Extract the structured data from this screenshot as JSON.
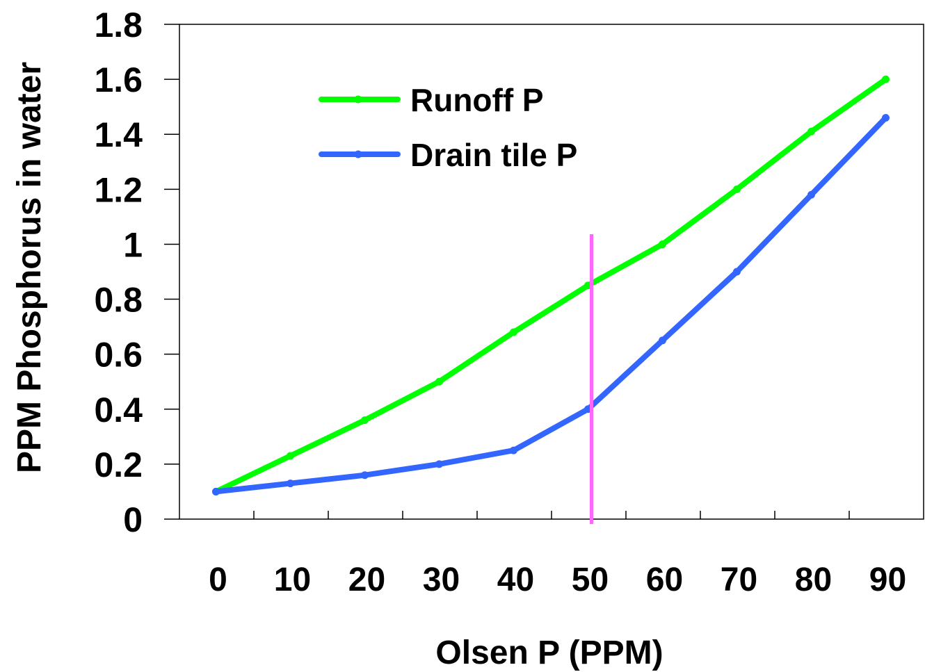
{
  "chart_data": {
    "type": "line",
    "title": "",
    "xlabel": "Olsen P (PPM)",
    "ylabel": "PPM Phosphorus  in water",
    "x": [
      0,
      10,
      20,
      30,
      40,
      50,
      60,
      70,
      80,
      90
    ],
    "x_tick_labels": [
      "0",
      "10",
      "20",
      "30",
      "40",
      "50",
      "60",
      "70",
      "80",
      "90"
    ],
    "y_tick_labels": [
      "0",
      "0.2",
      "0.4",
      "0.6",
      "0.8",
      "1",
      "1.2",
      "1.4",
      "1.6",
      "1.8"
    ],
    "ylim": [
      0,
      1.8
    ],
    "grid": false,
    "legend_position": "top-left",
    "series": [
      {
        "name": "Runoff P",
        "color": "#00ff00",
        "values": [
          0.1,
          0.23,
          0.36,
          0.5,
          0.68,
          0.85,
          1.0,
          1.2,
          1.41,
          1.6
        ]
      },
      {
        "name": "Drain tile P",
        "color": "#3366ff",
        "values": [
          0.1,
          0.13,
          0.16,
          0.2,
          0.25,
          0.4,
          0.65,
          0.9,
          1.18,
          1.46
        ]
      }
    ],
    "annotations": [
      {
        "type": "vertical-line",
        "x": 50,
        "color": "#ff66ff"
      }
    ]
  }
}
